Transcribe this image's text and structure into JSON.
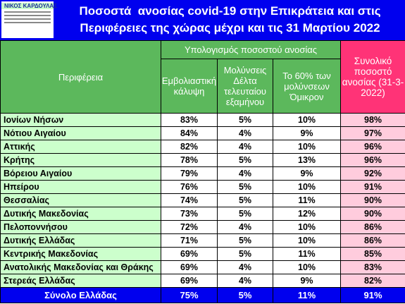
{
  "header": {
    "logo": "ΝΙΚΟΣ ΚΑΡΔΟΥΛΑΣ",
    "title": [
      "Ποσοστά  ανοσίας covid-19 στην Επικράτεια και στις",
      "Περιφέρειες της χώρας μέχρι και τις 31 Μαρτίου 2022"
    ]
  },
  "table": {
    "group_header": "Υπολογισμός ποσοστού ανοσίας",
    "columns": [
      "Περιφέρεια",
      "Εμβολιαστική κάλυψη",
      "Μολύνσεις Δέλτα τελευταίου εξαμήνου",
      "Το 60% των μολύνσεων Όμικρον",
      "Συνολικό ποσοστό ανοσίας (31-3-2022)"
    ],
    "rows": [
      [
        "Ιονίων Νήσων",
        "83%",
        "5%",
        "10%",
        "98%"
      ],
      [
        "Νότιου Αιγαίου",
        "84%",
        "4%",
        "9%",
        "97%"
      ],
      [
        "Αττικής",
        "82%",
        "4%",
        "10%",
        "96%"
      ],
      [
        "Κρήτης",
        "78%",
        "5%",
        "13%",
        "96%"
      ],
      [
        "Βόρειου Αιγαίου",
        "79%",
        "4%",
        "9%",
        "92%"
      ],
      [
        "Ηπείρου",
        "76%",
        "5%",
        "10%",
        "91%"
      ],
      [
        "Θεσσαλίας",
        "74%",
        "5%",
        "11%",
        "90%"
      ],
      [
        "Δυτικής Μακεδονίας",
        "73%",
        "5%",
        "12%",
        "90%"
      ],
      [
        "Πελοποννήσου",
        "72%",
        "4%",
        "10%",
        "86%"
      ],
      [
        "Δυτικής Ελλάδας",
        "71%",
        "5%",
        "10%",
        "86%"
      ],
      [
        "Κεντρικής Μακεδονίας",
        "69%",
        "5%",
        "11%",
        "85%"
      ],
      [
        "Ανατολικής Μακεδονίας και Θράκης",
        "69%",
        "4%",
        "10%",
        "83%"
      ],
      [
        "Στερεάς Ελλάδας",
        "69%",
        "4%",
        "9%",
        "82%"
      ]
    ],
    "total": [
      "Σύνολο Ελλάδας",
      "75%",
      "5%",
      "11%",
      "91%"
    ]
  }
}
